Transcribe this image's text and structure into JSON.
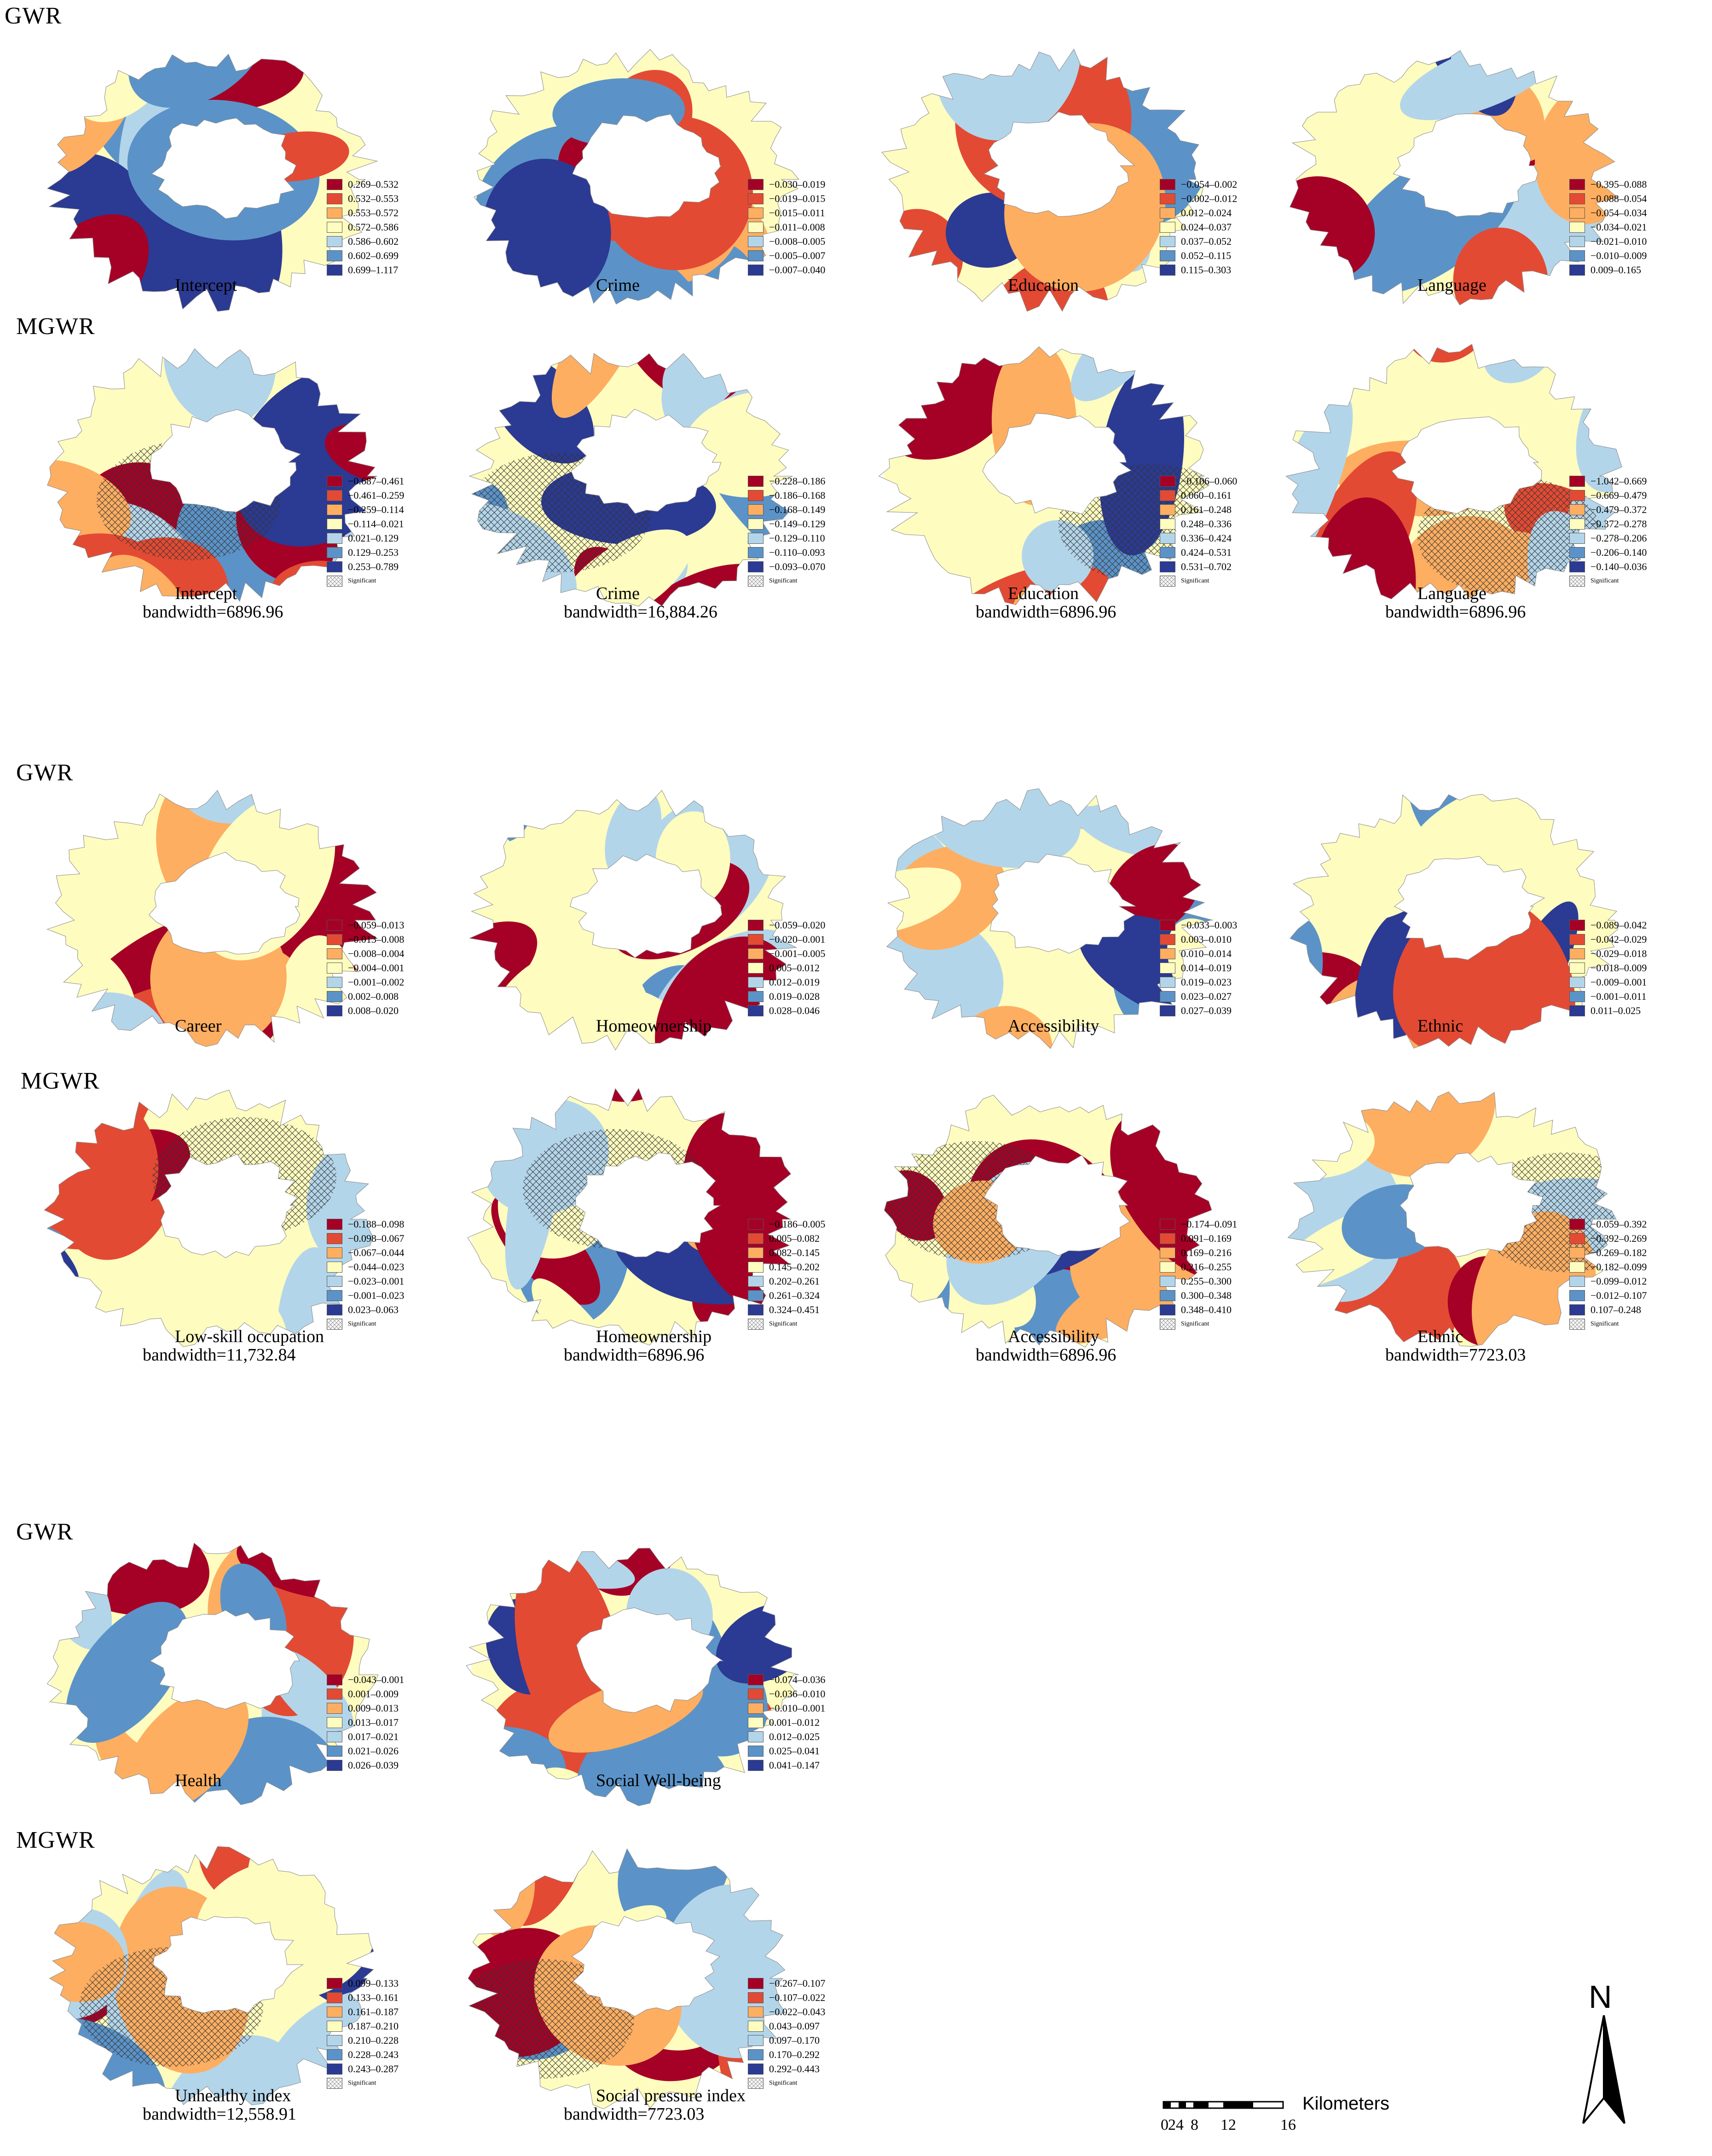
{
  "palette": [
    "#a50026",
    "#e34a33",
    "#fdae61",
    "#fffcbf",
    "#b3d5ea",
    "#5b93c8",
    "#2b3a93"
  ],
  "sections": [
    {
      "id": "s1",
      "gwr_label": "GWR",
      "mgwr_label": "MGWR"
    },
    {
      "id": "s2",
      "gwr_label": "GWR",
      "mgwr_label": "MGWR"
    },
    {
      "id": "s3",
      "gwr_label": "GWR",
      "mgwr_label": "MGWR"
    }
  ],
  "panels": [
    {
      "model": "GWR",
      "title": "Intercept",
      "bandwidth": "",
      "significant": false,
      "legend": [
        "0.269–0.532",
        "0.532–0.553",
        "0.553–0.572",
        "0.572–0.586",
        "0.586–0.602",
        "0.602–0.699",
        "0.699–1.117"
      ]
    },
    {
      "model": "GWR",
      "title": "Crime",
      "bandwidth": "",
      "significant": false,
      "legend": [
        "−0.030–0.019",
        "−0.019–0.015",
        "−0.015–0.011",
        "−0.011–0.008",
        "−0.008–0.005",
        "−0.005–0.007",
        "−0.007–0.040"
      ]
    },
    {
      "model": "GWR",
      "title": "Education",
      "bandwidth": "",
      "significant": false,
      "legend": [
        "−0.054–0.002",
        "−0.002–0.012",
        "0.012–0.024",
        "0.024–0.037",
        "0.037–0.052",
        "0.052–0.115",
        "0.115–0.303"
      ]
    },
    {
      "model": "GWR",
      "title": "Language",
      "bandwidth": "",
      "significant": false,
      "legend": [
        "−0.395–0.088",
        "−0.088–0.054",
        "−0.054–0.034",
        "−0.034–0.021",
        "−0.021–0.010",
        "−0.010–0.009",
        "0.009–0.165"
      ]
    },
    {
      "model": "MGWR",
      "title": "Intercept",
      "bandwidth": "bandwidth=6896.96",
      "significant": true,
      "legend": [
        "−0.687–0.461",
        "−0.461–0.259",
        "−0.259–0.114",
        "−0.114–0.021",
        "0.021–0.129",
        "0.129–0.253",
        "0.253–0.789"
      ]
    },
    {
      "model": "MGWR",
      "title": "Crime",
      "bandwidth": "bandwidth=16,884.26",
      "significant": true,
      "legend": [
        "−0.228–0.186",
        "−0.186–0.168",
        "−0.168–0.149",
        "−0.149–0.129",
        "−0.129–0.110",
        "−0.110–0.093",
        "−0.093–0.070"
      ]
    },
    {
      "model": "MGWR",
      "title": "Education",
      "bandwidth": "bandwidth=6896.96",
      "significant": true,
      "legend": [
        "−0.106–0.060",
        "0.060–0.161",
        "0.161–0.248",
        "0.248–0.336",
        "0.336–0.424",
        "0.424–0.531",
        "0.531–0.702"
      ]
    },
    {
      "model": "MGWR",
      "title": "Language",
      "bandwidth": "bandwidth=6896.96",
      "significant": true,
      "legend": [
        "−1.042–0.669",
        "−0.669–0.479",
        "−0.479–0.372",
        "−0.372–0.278",
        "−0.278–0.206",
        "−0.206–0.140",
        "−0.140–0.036"
      ]
    },
    {
      "model": "GWR",
      "title": "Career",
      "bandwidth": "",
      "significant": false,
      "legend": [
        "−0.059–0.013",
        "−0.013–0.008",
        "−0.008–0.004",
        "−0.004–0.001",
        "−0.001–0.002",
        "0.002–0.008",
        "0.008–0.020"
      ]
    },
    {
      "model": "GWR",
      "title": "Homeownership",
      "bandwidth": "",
      "significant": false,
      "legend": [
        "−0.059–0.020",
        "−0.020–0.001",
        "−0.001–0.005",
        "0.005–0.012",
        "0.012–0.019",
        "0.019–0.028",
        "0.028–0.046"
      ]
    },
    {
      "model": "GWR",
      "title": "Accessibility",
      "bandwidth": "",
      "significant": false,
      "legend": [
        "−0.033–0.003",
        "0.003–0.010",
        "0.010–0.014",
        "0.014–0.019",
        "0.019–0.023",
        "0.023–0.027",
        "0.027–0.039"
      ]
    },
    {
      "model": "GWR",
      "title": "Ethnic",
      "bandwidth": "",
      "significant": false,
      "legend": [
        "−0.089–0.042",
        "−0.042–0.029",
        "−0.029–0.018",
        "−0.018–0.009",
        "−0.009–0.001",
        "−0.001–0.011",
        "0.011–0.025"
      ]
    },
    {
      "model": "MGWR",
      "title": "Low-skill occupation",
      "bandwidth": "bandwidth=11,732.84",
      "significant": true,
      "legend": [
        "−0.188–0.098",
        "−0.098–0.067",
        "−0.067–0.044",
        "−0.044–0.023",
        "−0.023–0.001",
        "−0.001–0.023",
        "0.023–0.063"
      ]
    },
    {
      "model": "MGWR",
      "title": "Homeownership",
      "bandwidth": "bandwidth=6896.96",
      "significant": true,
      "legend": [
        "−0.186–0.005",
        "0.005–0.082",
        "0.082–0.145",
        "0.145–0.202",
        "0.202–0.261",
        "0.261–0.324",
        "0.324–0.451"
      ]
    },
    {
      "model": "MGWR",
      "title": "Accessibility",
      "bandwidth": "bandwidth=6896.96",
      "significant": true,
      "legend": [
        "−0.174–0.091",
        "0.091–0.169",
        "0.169–0.216",
        "0.216–0.255",
        "0.255–0.300",
        "0.300–0.348",
        "0.348–0.410"
      ]
    },
    {
      "model": "MGWR",
      "title": "Ethnic",
      "bandwidth": "bandwidth=7723.03",
      "significant": true,
      "legend": [
        "−0.059–0.392",
        "−0.392–0.269",
        "−0.269–0.182",
        "−0.182–0.099",
        "−0.099–0.012",
        "−0.012–0.107",
        "0.107–0.248"
      ]
    },
    {
      "model": "GWR",
      "title": "Health",
      "bandwidth": "",
      "significant": false,
      "legend": [
        "−0.043–0.001",
        "0.001–0.009",
        "0.009–0.013",
        "0.013–0.017",
        "0.017–0.021",
        "0.021–0.026",
        "0.026–0.039"
      ]
    },
    {
      "model": "GWR",
      "title": "Social Well-being",
      "bandwidth": "",
      "significant": false,
      "legend": [
        "−0.074–0.036",
        "−0.036–0.010",
        "−0.010–0.001",
        "0.001–0.012",
        "0.012–0.025",
        "0.025–0.041",
        "0.041–0.147"
      ]
    },
    {
      "model": "MGWR",
      "title": "Unhealthy index",
      "bandwidth": "bandwidth=12,558.91",
      "significant": true,
      "legend": [
        "0.099–0.133",
        "0.133–0.161",
        "0.161–0.187",
        "0.187–0.210",
        "0.210–0.228",
        "0.228–0.243",
        "0.243–0.287"
      ]
    },
    {
      "model": "MGWR",
      "title": "Social pressure index",
      "bandwidth": "bandwidth=7723.03",
      "significant": true,
      "legend": [
        "−0.267–0.107",
        "−0.107–0.022",
        "−0.022–0.043",
        "0.043–0.097",
        "0.097–0.170",
        "0.170–0.292",
        "0.292–0.443"
      ]
    }
  ],
  "significant_label": "Significant",
  "north_arrow": {
    "label": "N"
  },
  "scale_bar": {
    "ticks": [
      "0",
      "2",
      "4",
      "8",
      "12",
      "16"
    ],
    "unit": "Kilometers"
  }
}
